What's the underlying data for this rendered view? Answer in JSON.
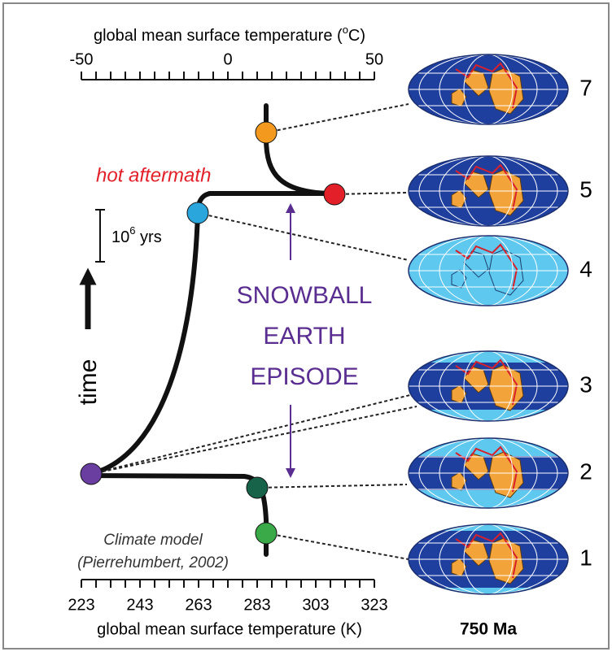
{
  "top_axis": {
    "label": [
      "global mean surface temperature (",
      "o",
      "C)"
    ],
    "ticks": [
      -50,
      0,
      50
    ]
  },
  "bottom_axis": {
    "label": "global mean surface temperature (K)",
    "ticks": [
      223,
      243,
      263,
      283,
      303,
      323
    ]
  },
  "annotations": {
    "hot": "hot aftermath",
    "scale": [
      "10",
      "6",
      " yrs"
    ],
    "time": "time",
    "episode": [
      "SNOWBALL",
      "EARTH",
      "EPISODE"
    ],
    "model": [
      "Climate model",
      "(Pierrehumbert, 2002)"
    ]
  },
  "globes": [
    "7",
    "5",
    "4",
    "3",
    "2",
    "1"
  ],
  "caption": "750 Ma"
}
